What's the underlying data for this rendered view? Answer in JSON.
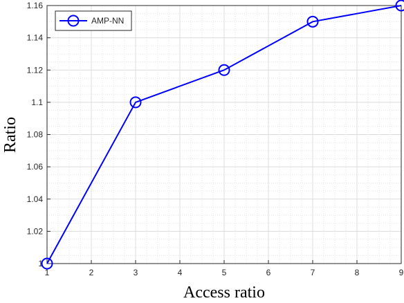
{
  "chart_data": {
    "type": "line",
    "x": [
      1,
      3,
      5,
      7,
      9
    ],
    "series": [
      {
        "name": "AMP-NN",
        "color": "#0000ff",
        "values": [
          1.0,
          1.1,
          1.12,
          1.15,
          1.16
        ]
      }
    ],
    "xlim": [
      1,
      9
    ],
    "xticks": [
      1,
      2,
      3,
      4,
      5,
      6,
      7,
      8,
      9
    ],
    "ylim": [
      1,
      1.16
    ],
    "yticks": [
      1,
      1.02,
      1.04,
      1.06,
      1.08,
      1.1,
      1.12,
      1.14,
      1.16
    ],
    "xlabel": "Access ratio",
    "ylabel": "Ratio",
    "grid": true,
    "legend": "upper left"
  }
}
